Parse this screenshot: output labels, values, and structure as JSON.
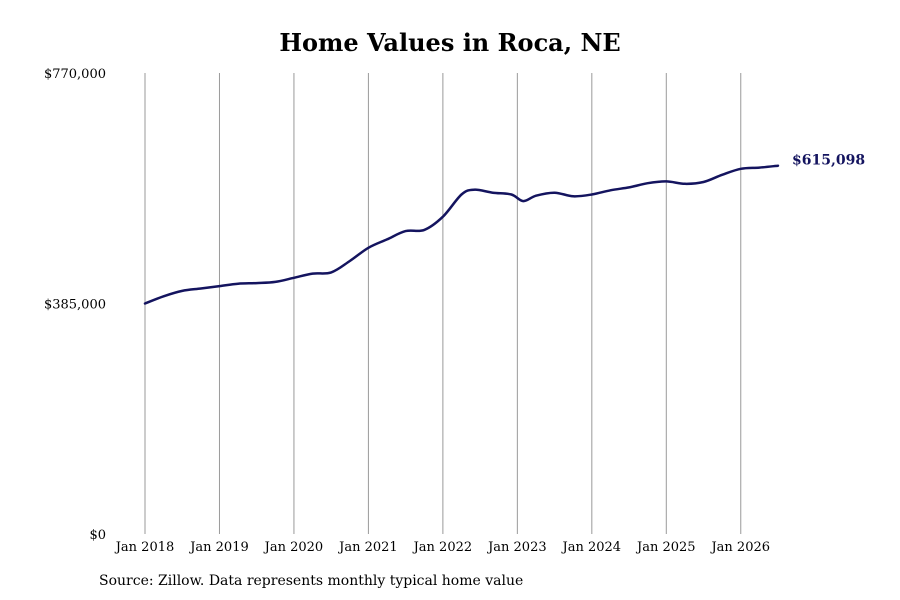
{
  "chart_data": {
    "type": "line",
    "title": "Home Values in Roca, NE",
    "source": "Source: Zillow. Data represents monthly typical home value",
    "y_ticks": [
      {
        "value": 0,
        "label": "$0"
      },
      {
        "value": 385000,
        "label": "$385,000"
      },
      {
        "value": 770000,
        "label": "$770,000"
      }
    ],
    "x_ticks": [
      {
        "value": 2018,
        "label": "Jan 2018"
      },
      {
        "value": 2019,
        "label": "Jan 2019"
      },
      {
        "value": 2020,
        "label": "Jan 2020"
      },
      {
        "value": 2021,
        "label": "Jan 2021"
      },
      {
        "value": 2022,
        "label": "Jan 2022"
      },
      {
        "value": 2023,
        "label": "Jan 2023"
      },
      {
        "value": 2024,
        "label": "Jan 2024"
      },
      {
        "value": 2025,
        "label": "Jan 2025"
      },
      {
        "value": 2026,
        "label": "Jan 2026"
      }
    ],
    "xlim": [
      2018,
      2026.5
    ],
    "ylim": [
      0,
      770000
    ],
    "grid": "vertical",
    "line_color": "#14145f",
    "end_label": "$615,098",
    "series": [
      {
        "x": [
          2018.0,
          2018.25,
          2018.5,
          2018.75,
          2019.0,
          2019.25,
          2019.5,
          2019.75,
          2020.0,
          2020.25,
          2020.5,
          2020.75,
          2021.0,
          2021.25,
          2021.5,
          2021.75,
          2022.0,
          2022.25,
          2022.42,
          2022.67,
          2022.92,
          2023.08,
          2023.25,
          2023.5,
          2023.75,
          2024.0,
          2024.25,
          2024.5,
          2024.75,
          2025.0,
          2025.25,
          2025.5,
          2025.75,
          2026.0,
          2026.25,
          2026.5
        ],
        "y": [
          385000,
          397000,
          406000,
          410000,
          414000,
          418000,
          419000,
          421000,
          428000,
          435000,
          437000,
          456000,
          478000,
          492000,
          506000,
          508000,
          530000,
          567000,
          575000,
          570000,
          567000,
          556000,
          565000,
          570000,
          564000,
          567000,
          574000,
          579000,
          586000,
          589000,
          585000,
          588000,
          600000,
          610000,
          612000,
          615098
        ]
      }
    ]
  }
}
